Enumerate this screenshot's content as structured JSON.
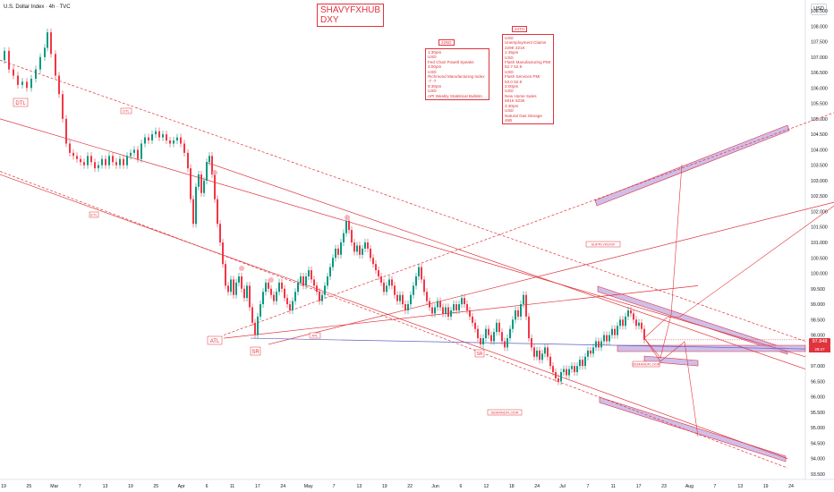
{
  "header": {
    "symbol_text": "U.S. Dollar Index · 4h · TVC",
    "currency": "USD"
  },
  "brand": {
    "line1": "SHAVYFXHUB",
    "line2": "DXY"
  },
  "chart_data": {
    "type": "candlestick",
    "ylim": [
      93.5,
      108.5
    ],
    "y_ticks": [
      "108.500",
      "108.000",
      "107.500",
      "107.000",
      "106.500",
      "106.000",
      "105.500",
      "105.000",
      "104.500",
      "104.000",
      "103.500",
      "103.000",
      "102.500",
      "102.000",
      "101.500",
      "101.000",
      "100.500",
      "100.000",
      "99.500",
      "99.000",
      "98.500",
      "98.000",
      "97.500",
      "97.000",
      "96.500",
      "96.000",
      "95.500",
      "95.000",
      "94.500",
      "94.000",
      "93.500"
    ],
    "x_labels": [
      "19",
      "25",
      "Mar",
      "7",
      "13",
      "19",
      "25",
      "Apr",
      "6",
      "11",
      "17",
      "24",
      "May",
      "7",
      "13",
      "19",
      "22",
      "Jun",
      "6",
      "12",
      "18",
      "24",
      "Jul",
      "7",
      "11",
      "17",
      "23",
      "Aug",
      "7",
      "13",
      "19",
      "24"
    ],
    "last_price": "97.848",
    "last_price_sub": "29:47",
    "close_path": [
      [
        0,
        106.9
      ],
      [
        5,
        107.2
      ],
      [
        10,
        106.6
      ],
      [
        15,
        106.4
      ],
      [
        20,
        106.1
      ],
      [
        25,
        106.2
      ],
      [
        30,
        106.0
      ],
      [
        35,
        106.3
      ],
      [
        40,
        106.6
      ],
      [
        45,
        107.0
      ],
      [
        50,
        107.3
      ],
      [
        53,
        107.8
      ],
      [
        57,
        107.1
      ],
      [
        62,
        106.4
      ],
      [
        66,
        105.8
      ],
      [
        70,
        105.0
      ],
      [
        74,
        104.2
      ],
      [
        78,
        103.9
      ],
      [
        82,
        103.8
      ],
      [
        86,
        103.7
      ],
      [
        90,
        103.6
      ],
      [
        94,
        103.5
      ],
      [
        98,
        103.8
      ],
      [
        102,
        103.6
      ],
      [
        106,
        103.4
      ],
      [
        110,
        103.5
      ],
      [
        114,
        103.7
      ],
      [
        118,
        103.5
      ],
      [
        122,
        103.8
      ],
      [
        126,
        103.6
      ],
      [
        130,
        103.5
      ],
      [
        134,
        103.7
      ],
      [
        138,
        103.5
      ],
      [
        142,
        103.8
      ],
      [
        146,
        103.9
      ],
      [
        150,
        104.0
      ],
      [
        154,
        103.7
      ],
      [
        158,
        104.2
      ],
      [
        162,
        104.4
      ],
      [
        166,
        104.3
      ],
      [
        170,
        104.5
      ],
      [
        174,
        104.6
      ],
      [
        178,
        104.4
      ],
      [
        182,
        104.5
      ],
      [
        186,
        104.3
      ],
      [
        190,
        104.2
      ],
      [
        194,
        104.3
      ],
      [
        198,
        104.4
      ],
      [
        202,
        104.2
      ],
      [
        206,
        103.9
      ],
      [
        210,
        103.4
      ],
      [
        213,
        102.4
      ],
      [
        216,
        101.6
      ],
      [
        219,
        102.8
      ],
      [
        222,
        103.2
      ],
      [
        225,
        102.6
      ],
      [
        228,
        103.0
      ],
      [
        231,
        103.6
      ],
      [
        234,
        103.8
      ],
      [
        237,
        103.2
      ],
      [
        240,
        102.4
      ],
      [
        243,
        101.6
      ],
      [
        246,
        101.0
      ],
      [
        249,
        100.3
      ],
      [
        252,
        99.6
      ],
      [
        255,
        99.4
      ],
      [
        258,
        99.8
      ],
      [
        261,
        99.3
      ],
      [
        264,
        99.7
      ],
      [
        267,
        99.9
      ],
      [
        270,
        99.5
      ],
      [
        273,
        99.2
      ],
      [
        276,
        99.6
      ],
      [
        279,
        98.9
      ],
      [
        282,
        98.4
      ],
      [
        285,
        98.0
      ],
      [
        288,
        98.6
      ],
      [
        291,
        99.0
      ],
      [
        294,
        99.4
      ],
      [
        297,
        99.7
      ],
      [
        300,
        99.5
      ],
      [
        303,
        99.3
      ],
      [
        306,
        99.1
      ],
      [
        309,
        99.4
      ],
      [
        312,
        99.7
      ],
      [
        315,
        99.5
      ],
      [
        318,
        99.2
      ],
      [
        321,
        99.0
      ],
      [
        324,
        98.8
      ],
      [
        327,
        99.1
      ],
      [
        330,
        99.4
      ],
      [
        333,
        99.7
      ],
      [
        336,
        99.9
      ],
      [
        339,
        99.6
      ],
      [
        342,
        99.9
      ],
      [
        345,
        100.1
      ],
      [
        348,
        99.8
      ],
      [
        351,
        99.6
      ],
      [
        354,
        99.4
      ],
      [
        357,
        99.1
      ],
      [
        360,
        99.3
      ],
      [
        363,
        99.6
      ],
      [
        366,
        99.9
      ],
      [
        369,
        100.2
      ],
      [
        372,
        100.5
      ],
      [
        375,
        100.8
      ],
      [
        378,
        100.6
      ],
      [
        381,
        101.0
      ],
      [
        384,
        101.3
      ],
      [
        387,
        101.7
      ],
      [
        390,
        101.4
      ],
      [
        393,
        101.0
      ],
      [
        396,
        100.7
      ],
      [
        399,
        100.9
      ],
      [
        402,
        100.6
      ],
      [
        405,
        100.8
      ],
      [
        408,
        101.0
      ],
      [
        411,
        100.8
      ],
      [
        414,
        100.5
      ],
      [
        417,
        100.3
      ],
      [
        420,
        100.1
      ],
      [
        423,
        99.9
      ],
      [
        426,
        99.7
      ],
      [
        429,
        99.4
      ],
      [
        432,
        99.6
      ],
      [
        435,
        99.8
      ],
      [
        438,
        99.6
      ],
      [
        441,
        99.3
      ],
      [
        444,
        99.1
      ],
      [
        447,
        99.3
      ],
      [
        450,
        99.0
      ],
      [
        453,
        98.8
      ],
      [
        456,
        99.0
      ],
      [
        459,
        99.3
      ],
      [
        462,
        99.6
      ],
      [
        465,
        99.9
      ],
      [
        468,
        100.2
      ],
      [
        471,
        99.8
      ],
      [
        474,
        99.4
      ],
      [
        477,
        99.1
      ],
      [
        480,
        98.9
      ],
      [
        483,
        98.7
      ],
      [
        486,
        98.9
      ],
      [
        489,
        99.1
      ],
      [
        492,
        98.9
      ],
      [
        495,
        98.7
      ],
      [
        498,
        98.9
      ],
      [
        501,
        98.6
      ],
      [
        504,
        98.8
      ],
      [
        507,
        99.0
      ],
      [
        510,
        98.8
      ],
      [
        513,
        99.0
      ],
      [
        516,
        99.2
      ],
      [
        519,
        99.0
      ],
      [
        522,
        98.8
      ],
      [
        525,
        98.6
      ],
      [
        528,
        98.4
      ],
      [
        531,
        98.2
      ],
      [
        534,
        97.9
      ],
      [
        537,
        97.7
      ],
      [
        540,
        97.9
      ],
      [
        543,
        98.2
      ],
      [
        546,
        98.0
      ],
      [
        549,
        97.8
      ],
      [
        552,
        98.1
      ],
      [
        555,
        98.4
      ],
      [
        558,
        98.1
      ],
      [
        561,
        97.8
      ],
      [
        564,
        97.6
      ],
      [
        567,
        97.9
      ],
      [
        570,
        98.2
      ],
      [
        573,
        98.5
      ],
      [
        576,
        98.8
      ],
      [
        579,
        98.6
      ],
      [
        582,
        99.0
      ],
      [
        585,
        99.3
      ],
      [
        588,
        98.6
      ],
      [
        591,
        97.9
      ],
      [
        594,
        97.6
      ],
      [
        597,
        97.3
      ],
      [
        600,
        97.5
      ],
      [
        603,
        97.2
      ],
      [
        606,
        97.4
      ],
      [
        609,
        97.6
      ],
      [
        612,
        97.3
      ],
      [
        615,
        97.0
      ],
      [
        618,
        96.8
      ],
      [
        621,
        96.6
      ],
      [
        624,
        96.5
      ],
      [
        627,
        96.8
      ],
      [
        630,
        96.9
      ],
      [
        633,
        96.7
      ],
      [
        636,
        96.9
      ],
      [
        639,
        97.0
      ],
      [
        642,
        96.8
      ],
      [
        645,
        97.0
      ],
      [
        648,
        97.2
      ],
      [
        651,
        97.0
      ],
      [
        654,
        97.3
      ],
      [
        657,
        97.5
      ],
      [
        660,
        97.4
      ],
      [
        663,
        97.6
      ],
      [
        666,
        97.8
      ],
      [
        669,
        97.6
      ],
      [
        672,
        97.8
      ],
      [
        675,
        98.0
      ],
      [
        678,
        97.8
      ],
      [
        681,
        98.0
      ],
      [
        684,
        98.2
      ],
      [
        687,
        98.0
      ],
      [
        690,
        98.3
      ],
      [
        693,
        98.5
      ],
      [
        696,
        98.3
      ],
      [
        699,
        98.6
      ],
      [
        702,
        98.8
      ],
      [
        705,
        98.7
      ],
      [
        708,
        98.5
      ],
      [
        711,
        98.3
      ],
      [
        714,
        98.4
      ],
      [
        717,
        98.2
      ],
      [
        720,
        97.85
      ]
    ],
    "lines": [
      {
        "name": "DTL",
        "from": [
          0,
          106.9
        ],
        "to": [
          900,
          97.8
        ]
      },
      {
        "name": "upper-diag-2",
        "from": [
          0,
          105.0
        ],
        "to": [
          900,
          97.3
        ]
      },
      {
        "name": "upper-diag-3",
        "from": [
          230,
          103.6
        ],
        "to": [
          900,
          96.9
        ]
      },
      {
        "name": "ETL",
        "from": [
          0,
          103.2
        ],
        "to": [
          880,
          94.0
        ]
      },
      {
        "name": "lower-dash",
        "from": [
          0,
          103.3
        ],
        "to": [
          880,
          93.7
        ]
      },
      {
        "name": "ATL",
        "from": [
          250,
          97.9
        ],
        "to": [
          780,
          99.6
        ]
      },
      {
        "name": "upper-asc-1",
        "from": [
          250,
          98.0
        ],
        "to": [
          932,
          105.2
        ]
      },
      {
        "name": "upper-asc-2",
        "from": [
          300,
          97.7
        ],
        "to": [
          932,
          102.3
        ]
      },
      {
        "name": "mid-flat",
        "from": [
          280,
          97.9
        ],
        "to": [
          900,
          97.55
        ]
      }
    ]
  },
  "annotations": {
    "dtl_label": "DTL",
    "dtl_mid": "DTL",
    "etl_label": "ETL",
    "atl_label": "ATL",
    "atl_mid": "ATL",
    "sr_label_1": "SR",
    "sr_label_2": "SR",
    "demand_floor": "DEMANDFLOOR",
    "demand_floor_2": "DEMANDFLOOR",
    "supply_zone": "SUPPLYROOF",
    "event_tag_1": "22ND",
    "event_tag_2": "24TH",
    "note_22nd": "1:30pm\nUSD\nFed Chair Powell Speaks\n3:00pm\nUSD\nRichmond Manufacturing Index\n-7 -7\n9:30pm\nUSD\nAPI Weekly Statistical Bulletin",
    "note_24th": "USD\nUnemployment Claims\n229K 221K\n1:45pm\nUSD\nFlash Manufacturing PMI\n52.7 52.9\nUSD\nFlash Services PMI\n53.0 52.9\n3:00pm\nUSD\nNew Home Sales\n691K 623K\n3:30pm\nUSD\nNatural Gas Storage\n46B"
  }
}
